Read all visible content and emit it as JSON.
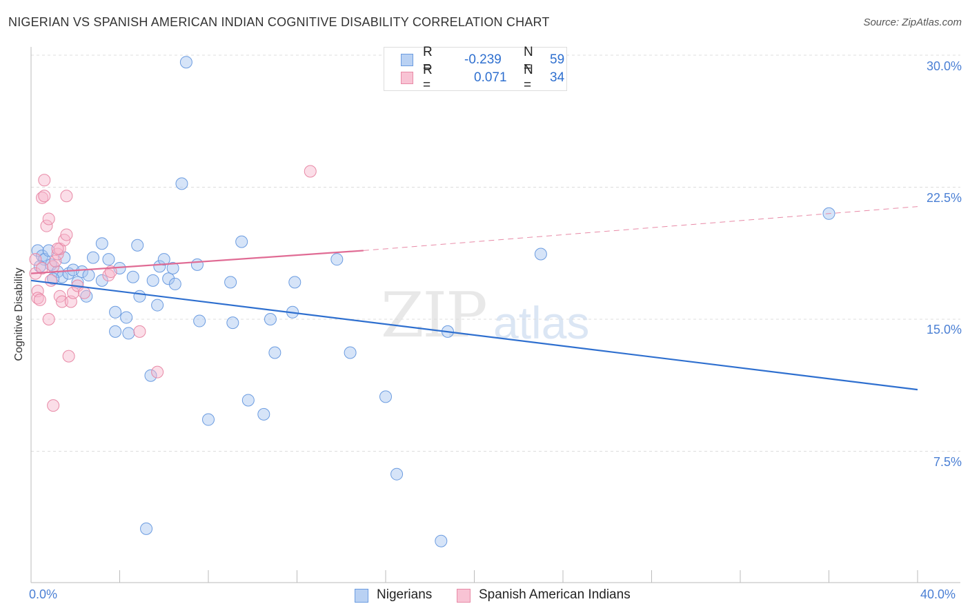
{
  "header": {
    "title": "NIGERIAN VS SPANISH AMERICAN INDIAN COGNITIVE DISABILITY CORRELATION CHART",
    "source": "Source: ZipAtlas.com"
  },
  "watermark": {
    "zip": "ZIP",
    "atlas": "atlas"
  },
  "legend": {
    "rows": [
      {
        "r_label": "R =",
        "r_value": "-0.239",
        "n_label": "N =",
        "n_value": "59",
        "color": "#6a9be0",
        "fill": "#b9d1f3"
      },
      {
        "r_label": "R =",
        "r_value": "0.071",
        "n_label": "N =",
        "n_value": "34",
        "color": "#e889a6",
        "fill": "#f8c3d4"
      }
    ]
  },
  "bottom_legend": {
    "items": [
      {
        "label": "Nigerians"
      },
      {
        "label": "Spanish American Indians"
      }
    ]
  },
  "axes": {
    "ylabel": "Cognitive Disability",
    "x_ticks": [
      "0.0%",
      "40.0%"
    ],
    "y_ticks": [
      "30.0%",
      "22.5%",
      "15.0%",
      "7.5%"
    ]
  },
  "chart_data": {
    "type": "scatter",
    "title": "NIGERIAN VS SPANISH AMERICAN INDIAN COGNITIVE DISABILITY CORRELATION CHART",
    "xlabel": "",
    "ylabel": "Cognitive Disability",
    "xlim": [
      0,
      40
    ],
    "ylim": [
      0,
      31.5
    ],
    "y_gridlines": [
      7.5,
      15.0,
      22.5,
      30.0
    ],
    "grid": "horizontal dashed",
    "colors": {
      "nigerians": "#2e6fcf",
      "spanish_american_indians": "#e06b94"
    },
    "series": [
      {
        "name": "Nigerians",
        "r": -0.239,
        "n": 59,
        "trend": {
          "x": [
            0,
            40
          ],
          "y": [
            17.2,
            11.0
          ],
          "style": "solid"
        },
        "points": [
          [
            0.3,
            18.9
          ],
          [
            0.5,
            18.6
          ],
          [
            0.6,
            18.4
          ],
          [
            0.8,
            18.9
          ],
          [
            0.9,
            18.1
          ],
          [
            1.2,
            17.7
          ],
          [
            1.4,
            17.4
          ],
          [
            1.5,
            18.5
          ],
          [
            1.7,
            17.6
          ],
          [
            1.9,
            17.8
          ],
          [
            2.1,
            17.1
          ],
          [
            2.3,
            17.7
          ],
          [
            2.5,
            16.3
          ],
          [
            2.8,
            18.5
          ],
          [
            3.2,
            17.2
          ],
          [
            3.2,
            19.3
          ],
          [
            3.5,
            18.4
          ],
          [
            3.8,
            15.4
          ],
          [
            3.8,
            14.3
          ],
          [
            4.0,
            17.9
          ],
          [
            4.3,
            15.1
          ],
          [
            4.4,
            14.2
          ],
          [
            4.6,
            17.4
          ],
          [
            4.8,
            19.2
          ],
          [
            4.9,
            16.3
          ],
          [
            5.2,
            3.1
          ],
          [
            5.4,
            11.8
          ],
          [
            5.5,
            17.2
          ],
          [
            5.7,
            15.8
          ],
          [
            5.8,
            18.0
          ],
          [
            6.0,
            18.4
          ],
          [
            6.2,
            17.3
          ],
          [
            6.4,
            17.9
          ],
          [
            6.5,
            17.0
          ],
          [
            6.8,
            22.7
          ],
          [
            7.0,
            29.6
          ],
          [
            7.5,
            18.1
          ],
          [
            7.6,
            14.9
          ],
          [
            8.0,
            9.3
          ],
          [
            9.0,
            17.1
          ],
          [
            9.1,
            14.8
          ],
          [
            9.5,
            19.4
          ],
          [
            9.8,
            10.4
          ],
          [
            10.5,
            9.6
          ],
          [
            10.8,
            15.0
          ],
          [
            11.0,
            13.1
          ],
          [
            11.8,
            15.4
          ],
          [
            11.9,
            17.1
          ],
          [
            13.8,
            18.4
          ],
          [
            14.4,
            13.1
          ],
          [
            16.0,
            10.6
          ],
          [
            16.5,
            6.2
          ],
          [
            18.5,
            2.4
          ],
          [
            18.8,
            14.3
          ],
          [
            23.0,
            18.7
          ],
          [
            36.0,
            21.0
          ],
          [
            0.4,
            18.0
          ],
          [
            1.0,
            17.3
          ],
          [
            2.6,
            17.5
          ]
        ]
      },
      {
        "name": "Spanish American Indians",
        "r": 0.071,
        "n": 34,
        "trend": {
          "x": [
            0,
            15
          ],
          "y": [
            17.6,
            18.9
          ],
          "style": "solid",
          "extended": {
            "x": [
              15,
              40
            ],
            "y": [
              18.9,
              21.4
            ],
            "style": "dashed"
          }
        },
        "points": [
          [
            0.2,
            18.4
          ],
          [
            0.2,
            17.6
          ],
          [
            0.3,
            16.6
          ],
          [
            0.3,
            16.2
          ],
          [
            0.5,
            21.9
          ],
          [
            0.6,
            22.9
          ],
          [
            0.6,
            22.0
          ],
          [
            0.7,
            20.3
          ],
          [
            0.8,
            20.7
          ],
          [
            0.8,
            15.0
          ],
          [
            0.9,
            17.2
          ],
          [
            1.0,
            18.0
          ],
          [
            1.0,
            10.1
          ],
          [
            1.1,
            18.3
          ],
          [
            1.2,
            18.7
          ],
          [
            1.3,
            19.0
          ],
          [
            1.3,
            16.3
          ],
          [
            1.4,
            16.0
          ],
          [
            1.5,
            19.5
          ],
          [
            1.6,
            19.8
          ],
          [
            1.6,
            22.0
          ],
          [
            1.7,
            12.9
          ],
          [
            1.8,
            16.0
          ],
          [
            1.9,
            16.5
          ],
          [
            2.1,
            16.9
          ],
          [
            2.4,
            16.5
          ],
          [
            3.5,
            17.5
          ],
          [
            3.6,
            17.7
          ],
          [
            4.9,
            14.3
          ],
          [
            5.7,
            12.0
          ],
          [
            12.6,
            23.4
          ],
          [
            0.4,
            16.1
          ],
          [
            1.2,
            19.0
          ],
          [
            0.5,
            17.9
          ]
        ]
      }
    ]
  }
}
